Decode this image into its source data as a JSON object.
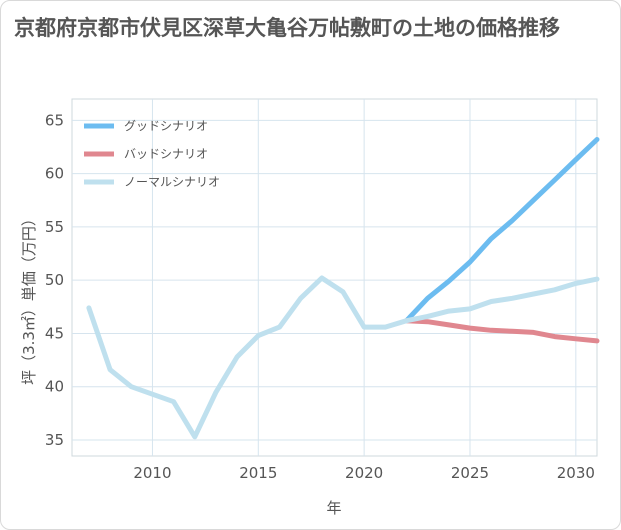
{
  "title": "京都府京都市伏見区深草大亀谷万帖敷町の土地の価格推移",
  "chart_data": {
    "type": "line",
    "xlabel": "年",
    "ylabel": "坪（3.3㎡）単価（万円）",
    "xlim": [
      2006.2,
      2031
    ],
    "ylim": [
      33.5,
      67
    ],
    "xticks": [
      2010,
      2015,
      2020,
      2025,
      2030
    ],
    "yticks": [
      35,
      40,
      45,
      50,
      55,
      60,
      65
    ],
    "grid": true,
    "legend_position": "top-left",
    "colors": {
      "good": "#6cbcf0",
      "bad": "#e0878f",
      "normal": "#bfe0ee"
    },
    "series": [
      {
        "name": "グッドシナリオ",
        "key": "good",
        "x": [
          2022,
          2023,
          2024,
          2025,
          2026,
          2027,
          2028,
          2029,
          2030,
          2031
        ],
        "values": [
          46.2,
          48.3,
          49.9,
          51.7,
          53.9,
          55.6,
          57.5,
          59.4,
          61.3,
          63.2
        ]
      },
      {
        "name": "バッドシナリオ",
        "key": "bad",
        "x": [
          2022,
          2023,
          2024,
          2025,
          2026,
          2027,
          2028,
          2029,
          2030,
          2031
        ],
        "values": [
          46.2,
          46.1,
          45.8,
          45.5,
          45.3,
          45.2,
          45.1,
          44.7,
          44.5,
          44.3
        ]
      },
      {
        "name": "ノーマルシナリオ",
        "key": "normal",
        "x": [
          2007,
          2008,
          2009,
          2010,
          2011,
          2012,
          2013,
          2014,
          2015,
          2016,
          2017,
          2018,
          2019,
          2020,
          2021,
          2022,
          2023,
          2024,
          2025,
          2026,
          2027,
          2028,
          2029,
          2030,
          2031
        ],
        "values": [
          47.4,
          41.6,
          40.0,
          39.3,
          38.6,
          35.3,
          39.5,
          42.8,
          44.8,
          45.6,
          48.3,
          50.2,
          48.9,
          45.6,
          45.6,
          46.2,
          46.6,
          47.1,
          47.3,
          48.0,
          48.3,
          48.7,
          49.1,
          49.7,
          50.1
        ]
      }
    ]
  }
}
